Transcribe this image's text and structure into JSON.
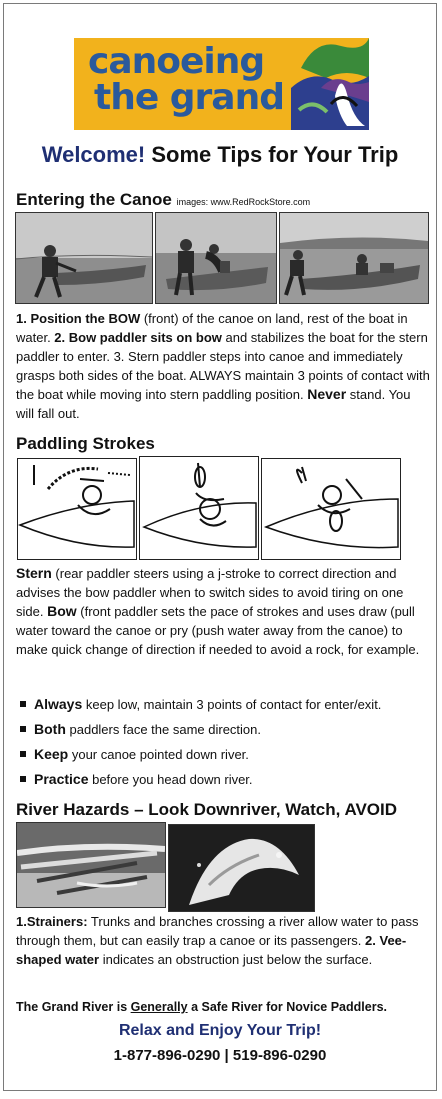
{
  "logo": {
    "line1": "canoeing",
    "line2": "the grand"
  },
  "welcome": {
    "highlight": "Welcome!",
    "rest": " Some Tips for Your Trip"
  },
  "entering": {
    "heading": "Entering the Canoe",
    "credit": "images: www.RedRockStore.com",
    "p1_b1": "1. Position the BOW",
    "p1_t1": " (front) of the canoe on land, rest of the boat in water. ",
    "p1_b2": "2. Bow paddler sits on bow",
    "p1_t2": " and stabilizes the boat for the stern paddler to enter. 3. Stern paddler steps into canoe and immediately grasps both sides of the boat. ALWAYS maintain 3 points of contact with the boat while moving into stern paddling position. ",
    "p1_b3": "Never",
    "p1_t3": " stand. You will fall out."
  },
  "strokes": {
    "heading": "Paddling Strokes",
    "b1": "Stern",
    "t1": " (rear paddler steers using a j-stroke to correct direction and advises the bow paddler when to switch sides to avoid tiring on one side. ",
    "b2": "Bow",
    "t2": " (front paddler sets the pace of strokes and uses draw (pull water toward the canoe or pry (push water away from the canoe) to make quick change of direction if needed to avoid a rock, for example."
  },
  "bullets": [
    {
      "bold": "Always",
      "text": " keep low, maintain 3 points of contact for enter/exit."
    },
    {
      "bold": "Both",
      "text": " paddlers face the same direction."
    },
    {
      "bold": "Keep",
      "text": " your canoe pointed  down river."
    },
    {
      "bold": "Practice",
      "text": " before you head down river."
    }
  ],
  "hazards": {
    "heading": "River Hazards – Look Downriver, Watch, AVOID",
    "b1": "1.Strainers:",
    "t1": " Trunks and branches crossing a river allow water to pass through them, but can easily trap a canoe or its passengers.  ",
    "b2": "2. Vee-shaped water",
    "t2": " indicates an obstruction just below the surface."
  },
  "footer": {
    "tag_pre": "The Grand River is ",
    "tag_ul": "Generally",
    "tag_post": " a Safe River for Novice Paddlers.",
    "relax": "Relax and Enjoy Your Trip!",
    "phone": "1-877-896-0290 | 519-896-0290"
  },
  "colors": {
    "navy": "#1f2f73",
    "logo_bg": "#f2b21c",
    "logo_text": "#2a5a9c"
  }
}
